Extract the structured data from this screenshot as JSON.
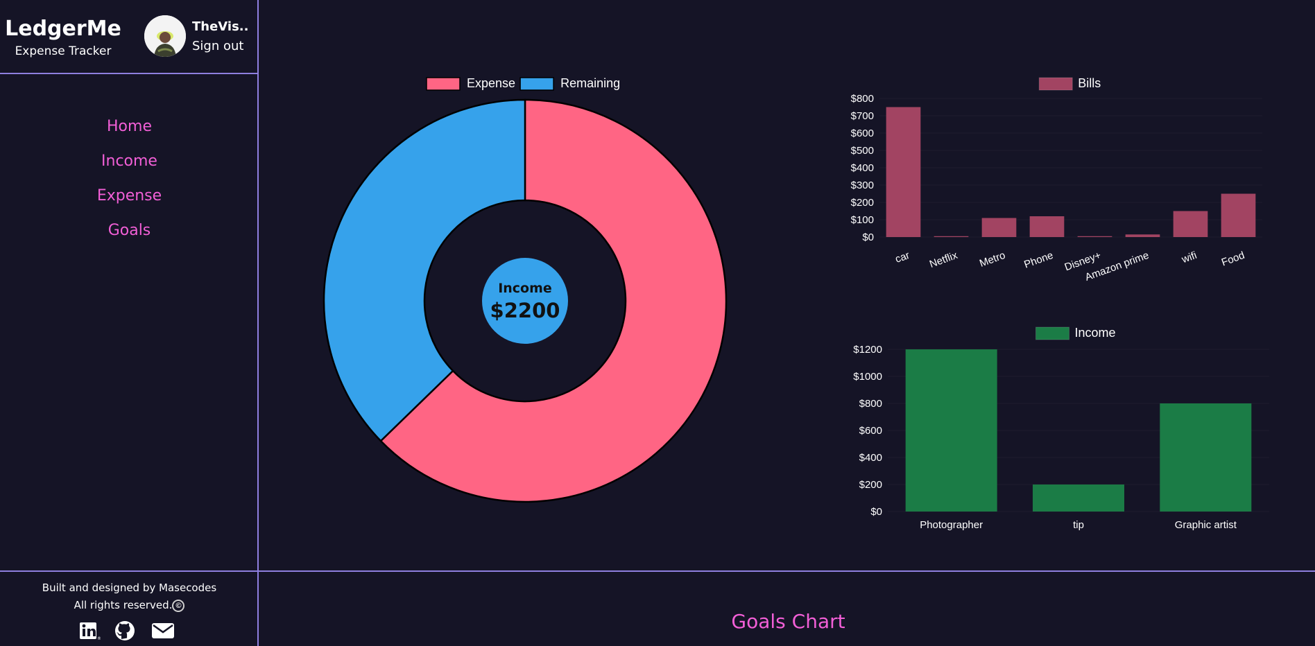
{
  "app": {
    "title": "LedgerMe",
    "subtitle": "Expense Tracker"
  },
  "user": {
    "name": "TheVis...",
    "sign_out": "Sign out"
  },
  "nav": {
    "items": [
      "Home",
      "Income",
      "Expense",
      "Goals"
    ]
  },
  "footer": {
    "credit": "Built and designed by Masecodes",
    "rights": "All rights reserved.",
    "copyright_symbol": "©",
    "social_icons": [
      "linkedin-icon",
      "github-icon",
      "mail-icon"
    ]
  },
  "goals": {
    "title": "Goals Chart"
  },
  "colors": {
    "expense": "#ff6584",
    "remaining": "#36a2eb",
    "bills": "#a24462",
    "income_bar": "#1b7c46",
    "accent": "#f25fd7",
    "border": "#8f7fe0",
    "background": "#151426"
  },
  "chart_data": [
    {
      "type": "doughnut",
      "labels": [
        "Expense",
        "Remaining"
      ],
      "values": [
        1380,
        820
      ],
      "center_label": "Income",
      "center_value": "$2200"
    },
    {
      "type": "bar",
      "series": [
        {
          "name": "Bills",
          "values": [
            750,
            5,
            110,
            120,
            5,
            15,
            150,
            250
          ]
        }
      ],
      "categories": [
        "car",
        "Netflix",
        "Metro",
        "Phone",
        "Disney+",
        "Amazon prime",
        "wifi",
        "Food"
      ],
      "yticks": [
        "$0",
        "$100",
        "$200",
        "$300",
        "$400",
        "$500",
        "$600",
        "$700",
        "$800"
      ],
      "ylim": [
        0,
        800
      ]
    },
    {
      "type": "bar",
      "series": [
        {
          "name": "Income",
          "values": [
            1200,
            200,
            800
          ]
        }
      ],
      "categories": [
        "Photographer",
        "tip",
        "Graphic artist"
      ],
      "yticks": [
        "$0",
        "$200",
        "$400",
        "$600",
        "$800",
        "$1000",
        "$1200"
      ],
      "ylim": [
        0,
        1200
      ]
    }
  ]
}
